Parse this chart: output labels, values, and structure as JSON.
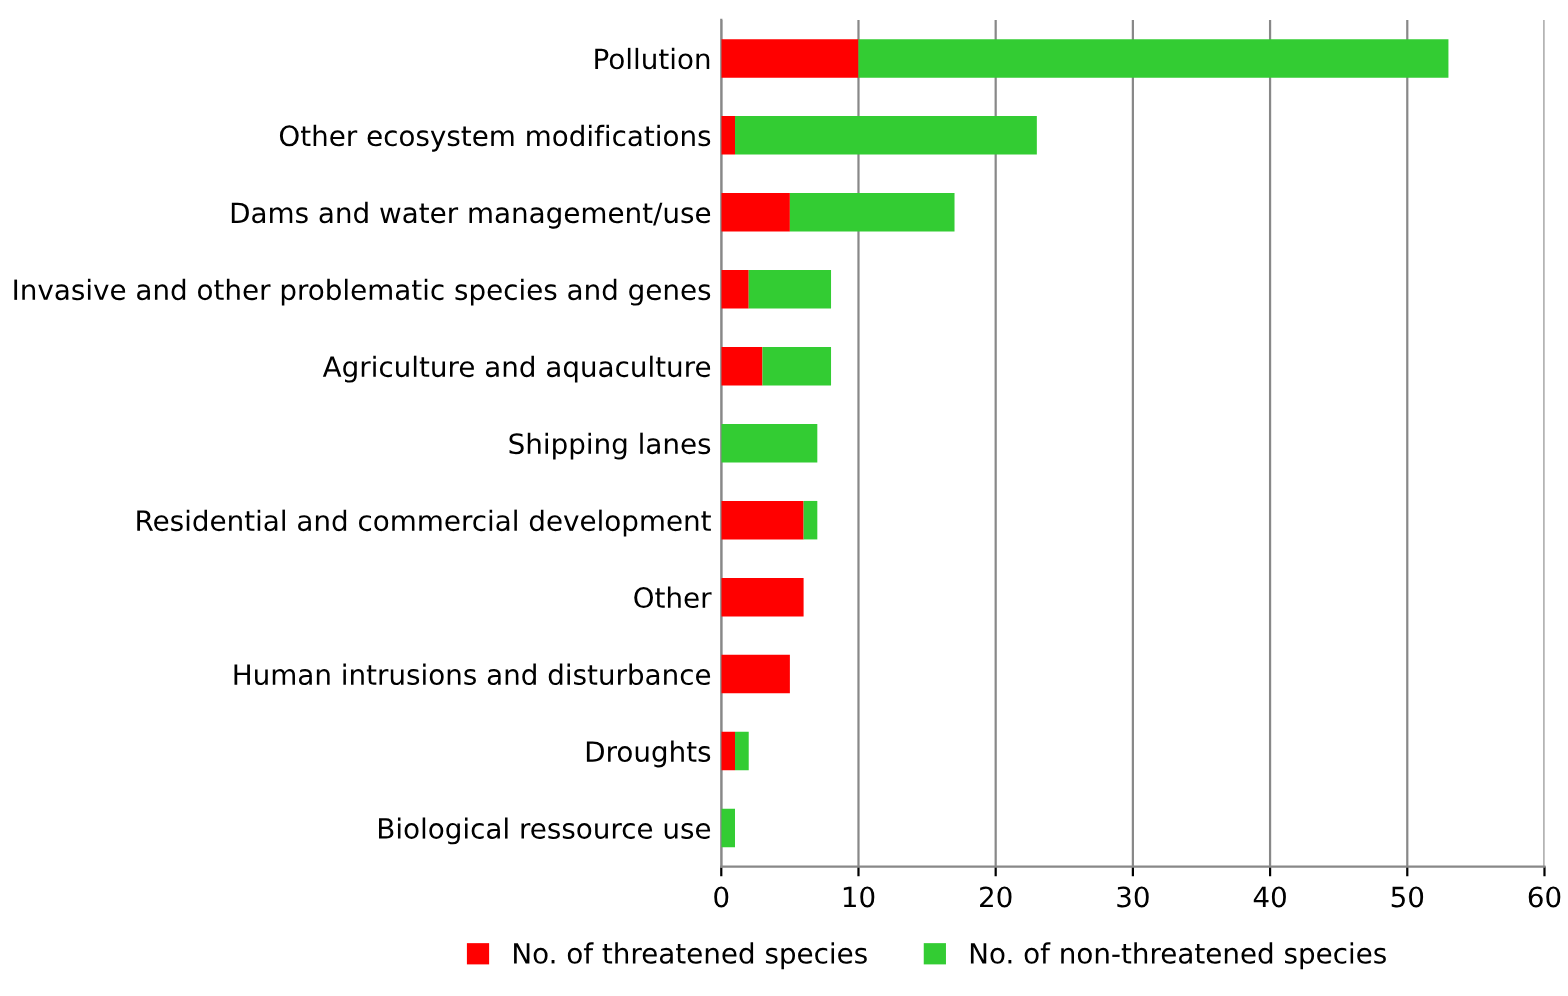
{
  "chart_data": {
    "type": "bar",
    "orientation": "horizontal",
    "stacked": true,
    "categories": [
      "Pollution",
      "Other ecosystem modifications",
      "Dams and water management/use",
      "Invasive and other problematic species and genes",
      "Agriculture and aquaculture",
      "Shipping lanes",
      "Residential and commercial development",
      "Other",
      "Human intrusions and disturbance",
      "Droughts",
      "Biological ressource use"
    ],
    "series": [
      {
        "name": "No. of threatened species",
        "color": "#ff0000",
        "values": [
          10,
          1,
          5,
          2,
          3,
          0,
          6,
          6,
          5,
          1,
          0
        ]
      },
      {
        "name": "No. of non-threatened species",
        "color": "#33cc33",
        "values": [
          43,
          22,
          12,
          6,
          5,
          7,
          1,
          0,
          0,
          1,
          1
        ]
      }
    ],
    "xlim": [
      0,
      60
    ],
    "xticks": [
      0,
      10,
      20,
      30,
      40,
      50,
      60
    ],
    "grid": "x",
    "legend": "bottom"
  }
}
